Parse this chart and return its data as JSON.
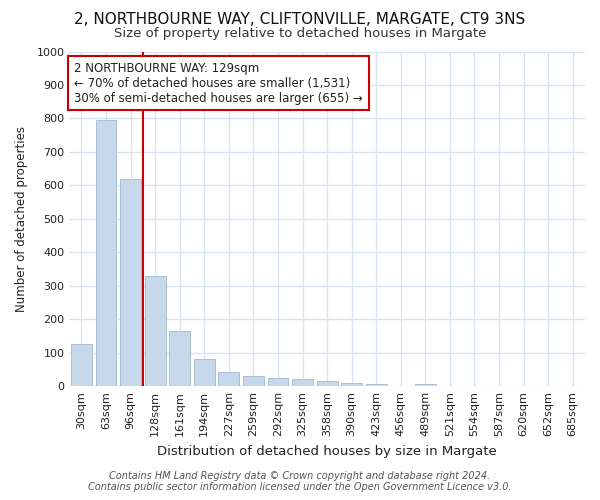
{
  "title1": "2, NORTHBOURNE WAY, CLIFTONVILLE, MARGATE, CT9 3NS",
  "title2": "Size of property relative to detached houses in Margate",
  "xlabel": "Distribution of detached houses by size in Margate",
  "ylabel": "Number of detached properties",
  "categories": [
    "30sqm",
    "63sqm",
    "96sqm",
    "128sqm",
    "161sqm",
    "194sqm",
    "227sqm",
    "259sqm",
    "292sqm",
    "325sqm",
    "358sqm",
    "390sqm",
    "423sqm",
    "456sqm",
    "489sqm",
    "521sqm",
    "554sqm",
    "587sqm",
    "620sqm",
    "652sqm",
    "685sqm"
  ],
  "values": [
    125,
    795,
    620,
    330,
    165,
    82,
    42,
    30,
    25,
    20,
    15,
    10,
    8,
    0,
    8,
    0,
    0,
    0,
    0,
    0,
    0
  ],
  "bar_color": "#c8d8eb",
  "bar_edge_color": "#a8c0d8",
  "property_line_x": 2.5,
  "property_line_color": "#cc0000",
  "annotation_text": "2 NORTHBOURNE WAY: 129sqm\n← 70% of detached houses are smaller (1,531)\n30% of semi-detached houses are larger (655) →",
  "annotation_box_facecolor": "#ffffff",
  "annotation_box_edgecolor": "#cc0000",
  "ylim": [
    0,
    1000
  ],
  "yticks": [
    0,
    100,
    200,
    300,
    400,
    500,
    600,
    700,
    800,
    900,
    1000
  ],
  "footer_line1": "Contains HM Land Registry data © Crown copyright and database right 2024.",
  "footer_line2": "Contains public sector information licensed under the Open Government Licence v3.0.",
  "bg_color": "#ffffff",
  "plot_bg_color": "#ffffff",
  "grid_color": "#d8e4f0",
  "title1_fontsize": 11,
  "title2_fontsize": 9.5,
  "xlabel_fontsize": 9.5,
  "ylabel_fontsize": 8.5,
  "tick_fontsize": 8,
  "annotation_fontsize": 8.5,
  "footer_fontsize": 7
}
